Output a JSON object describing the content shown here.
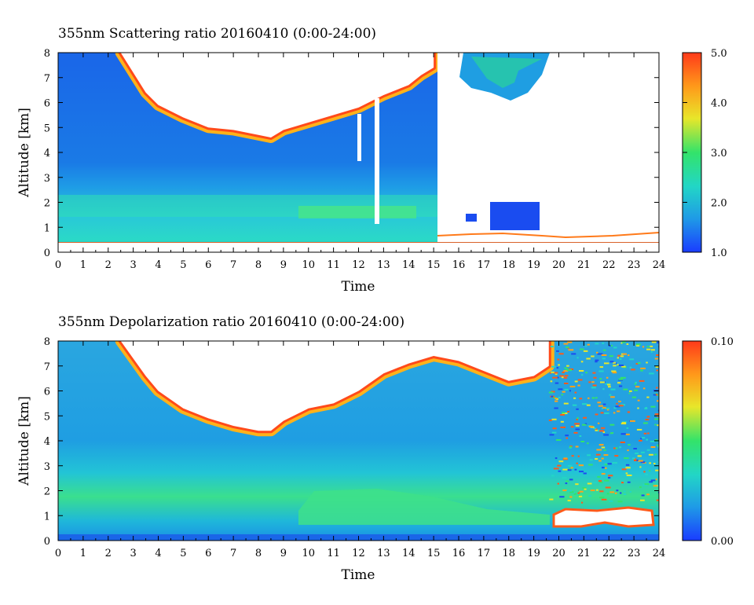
{
  "chart_data": [
    {
      "type": "heatmap",
      "title": "355nm Scattering ratio  20160410 (0:00-24:00)",
      "xlabel": "Time",
      "ylabel": "Altitude [km]",
      "xlim": [
        0,
        24
      ],
      "ylim": [
        0,
        8
      ],
      "x_ticks": [
        "0",
        "1",
        "2",
        "3",
        "4",
        "5",
        "6",
        "7",
        "8",
        "9",
        "10",
        "11",
        "12",
        "13",
        "14",
        "15",
        "16",
        "17",
        "18",
        "19",
        "20",
        "21",
        "22",
        "23",
        "24"
      ],
      "y_ticks": [
        "0",
        "1",
        "2",
        "3",
        "4",
        "5",
        "6",
        "7",
        "8"
      ],
      "colorbar": {
        "range": [
          1.0,
          5.0
        ],
        "ticks": [
          "1.0",
          "2.0",
          "3.0",
          "4.0",
          "5.0"
        ],
        "colors": [
          "#1a3cff",
          "#1f9be6",
          "#22d6c6",
          "#33e36a",
          "#e8e62a",
          "#ff9a1a",
          "#ff3a1a"
        ]
      },
      "features": {
        "cloud_base_profile": [
          [
            2.5,
            8.0
          ],
          [
            3.0,
            7.2
          ],
          [
            3.5,
            6.4
          ],
          [
            4.0,
            5.9
          ],
          [
            5.0,
            5.4
          ],
          [
            6.0,
            5.0
          ],
          [
            7.0,
            4.9
          ],
          [
            8.0,
            4.7
          ],
          [
            8.5,
            4.6
          ],
          [
            9.0,
            4.9
          ],
          [
            10.0,
            5.2
          ],
          [
            11.0,
            5.5
          ],
          [
            12.0,
            5.8
          ],
          [
            13.0,
            6.3
          ],
          [
            14.0,
            6.7
          ],
          [
            14.5,
            7.1
          ],
          [
            15.0,
            7.4
          ]
        ],
        "data_gap_hours": [
          [
            15.2,
            19.6
          ],
          [
            19.6,
            24.0
          ]
        ]
      }
    },
    {
      "type": "heatmap",
      "title": "355nm Depolarization ratio  20160410 (0:00-24:00)",
      "xlabel": "Time",
      "ylabel": "Altitude [km]",
      "xlim": [
        0,
        24
      ],
      "ylim": [
        0,
        8
      ],
      "x_ticks": [
        "0",
        "1",
        "2",
        "3",
        "4",
        "5",
        "6",
        "7",
        "8",
        "9",
        "10",
        "11",
        "12",
        "13",
        "14",
        "15",
        "16",
        "17",
        "18",
        "19",
        "20",
        "21",
        "22",
        "23",
        "24"
      ],
      "y_ticks": [
        "0",
        "1",
        "2",
        "3",
        "4",
        "5",
        "6",
        "7",
        "8"
      ],
      "colorbar": {
        "range": [
          0.0,
          0.1
        ],
        "ticks": [
          "0.00",
          "0.10"
        ],
        "colors": [
          "#1a3cff",
          "#1f9be6",
          "#22d6c6",
          "#33e36a",
          "#e8e62a",
          "#ff9a1a",
          "#ff3a1a"
        ]
      },
      "features": {
        "cloud_base_profile": [
          [
            2.5,
            8.0
          ],
          [
            3.0,
            7.3
          ],
          [
            3.5,
            6.6
          ],
          [
            4.0,
            6.0
          ],
          [
            5.0,
            5.3
          ],
          [
            6.0,
            4.9
          ],
          [
            7.0,
            4.6
          ],
          [
            8.0,
            4.4
          ],
          [
            8.5,
            4.4
          ],
          [
            9.0,
            4.8
          ],
          [
            10.0,
            5.3
          ],
          [
            11.0,
            5.5
          ],
          [
            12.0,
            6.0
          ],
          [
            13.0,
            6.7
          ],
          [
            14.0,
            7.1
          ],
          [
            15.0,
            7.4
          ],
          [
            16.0,
            7.2
          ],
          [
            17.0,
            6.8
          ],
          [
            18.0,
            6.4
          ],
          [
            19.0,
            6.6
          ],
          [
            19.6,
            7.0
          ]
        ],
        "noisy_region_hours": [
          19.6,
          24.0
        ],
        "low_cloud_hours": [
          19.8,
          24.0
        ]
      }
    }
  ]
}
